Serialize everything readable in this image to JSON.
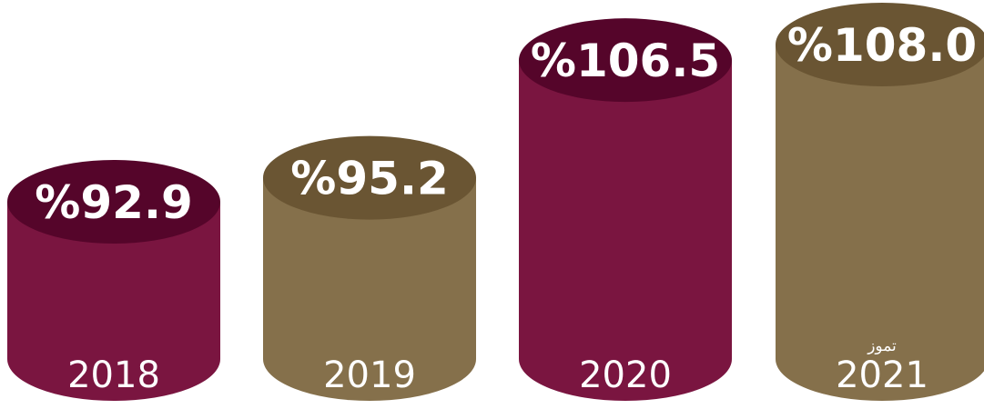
{
  "chart_data": {
    "type": "bar",
    "title": "",
    "xlabel": "",
    "ylabel": "",
    "categories": [
      "2018",
      "2019",
      "2020",
      "2021"
    ],
    "category_notes": [
      "",
      "",
      "",
      "تموز"
    ],
    "values": [
      92.9,
      95.2,
      106.5,
      108.0
    ],
    "value_labels": [
      "%92.9",
      "%95.2",
      "%106.5",
      "%108.0"
    ],
    "bar_style": "cylinder",
    "grid": false,
    "legend": "none",
    "colors": {
      "maroon_body": "#7a1540",
      "maroon_top": "#55052a",
      "gold_body": "#85704b",
      "gold_top": "#6a5533",
      "text": "#ffffff"
    },
    "bar_colors": [
      "maroon",
      "gold",
      "maroon",
      "gold"
    ]
  }
}
